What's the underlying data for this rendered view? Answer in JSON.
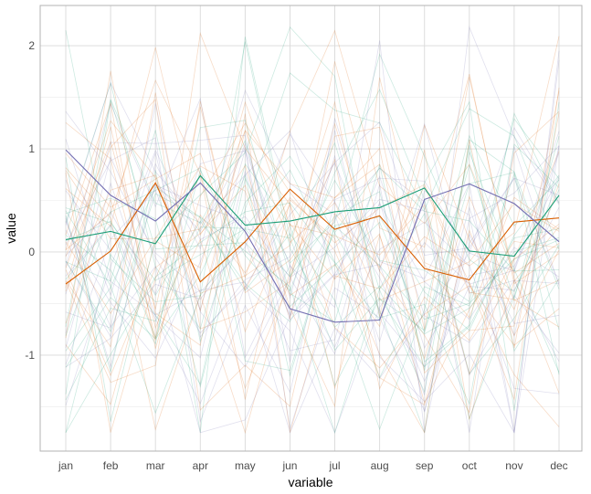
{
  "chart_data": {
    "type": "line",
    "xlabel": "variable",
    "ylabel": "value",
    "categories": [
      "jan",
      "feb",
      "mar",
      "apr",
      "may",
      "jun",
      "jul",
      "aug",
      "sep",
      "oct",
      "nov",
      "dec"
    ],
    "ylim": [
      -1.93,
      2.39
    ],
    "yticks": [
      -1,
      0,
      1,
      2
    ],
    "grid": true,
    "legend": "none",
    "background_series_count": 60,
    "background_opacity": 0.22,
    "palette": [
      "#1b9e77",
      "#d95f02",
      "#7570b3"
    ],
    "highlighted_series": [
      {
        "color": "#d95f02",
        "values": [
          -0.31,
          0.01,
          0.67,
          -0.29,
          0.1,
          0.61,
          0.22,
          0.35,
          -0.16,
          -0.27,
          0.29,
          0.33
        ]
      },
      {
        "color": "#1b9e77",
        "values": [
          0.12,
          0.2,
          0.08,
          0.74,
          0.26,
          0.3,
          0.39,
          0.43,
          0.62,
          0.01,
          -0.04,
          0.55
        ]
      },
      {
        "color": "#7570b3",
        "values": [
          0.99,
          0.55,
          0.3,
          0.67,
          0.2,
          -0.55,
          -0.68,
          -0.66,
          0.51,
          0.66,
          0.47,
          0.1
        ]
      }
    ]
  }
}
